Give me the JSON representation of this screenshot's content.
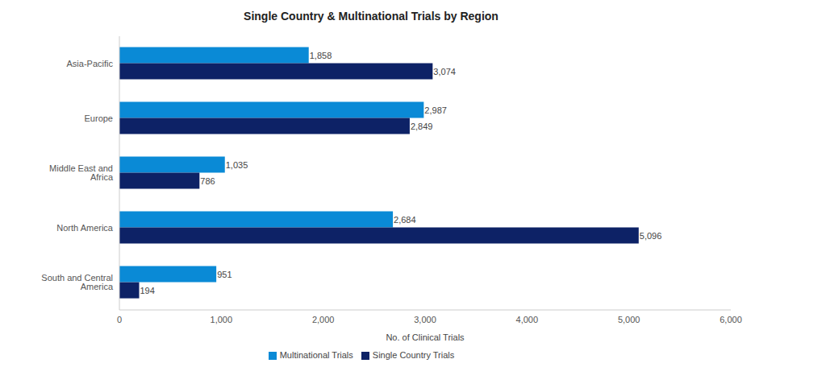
{
  "chart_data": {
    "type": "bar",
    "title": "Single Country & Multinational Trials by Region",
    "orientation": "horizontal",
    "categories": [
      "Asia-Pacific",
      "Europe",
      "Middle East and Africa",
      "North America",
      "South and Central America"
    ],
    "series": [
      {
        "name": "Multinational Trials",
        "color": "#0a8ad6",
        "values": [
          1858,
          2987,
          1035,
          2684,
          951
        ],
        "value_labels": [
          "1,858",
          "2,987",
          "1,035",
          "2,684",
          "951"
        ]
      },
      {
        "name": "Single Country Trials",
        "color": "#0d2266",
        "values": [
          3074,
          2849,
          786,
          5096,
          194
        ],
        "value_labels": [
          "3,074",
          "2,849",
          "786",
          "5,096",
          "194"
        ]
      }
    ],
    "x_label": "No. of Clinical Trials",
    "xlim": [
      0,
      6000
    ],
    "xticks": [
      0,
      {
        "value": 1000,
        "label": "1,000"
      },
      {
        "value": 2000,
        "label": "2,000"
      },
      {
        "value": 3000,
        "label": "3,000"
      },
      {
        "value": 4000,
        "label": "4,000"
      },
      {
        "value": 5000,
        "label": "5,000"
      },
      {
        "value": 6000,
        "label": "6,000"
      }
    ],
    "grid": false,
    "legend": "bottom",
    "data_labels": true
  }
}
